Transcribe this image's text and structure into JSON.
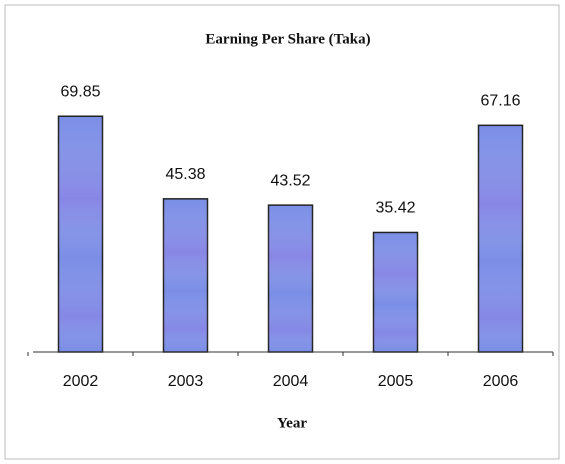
{
  "chart_data": {
    "type": "bar",
    "title": "Earning Per Share (Taka)",
    "xlabel": "Year",
    "categories": [
      "2002",
      "2003",
      "2004",
      "2005",
      "2006"
    ],
    "values": [
      69.85,
      45.38,
      43.52,
      35.42,
      67.16
    ],
    "color": "#7b8ee6",
    "ylim": [
      0,
      80
    ]
  }
}
